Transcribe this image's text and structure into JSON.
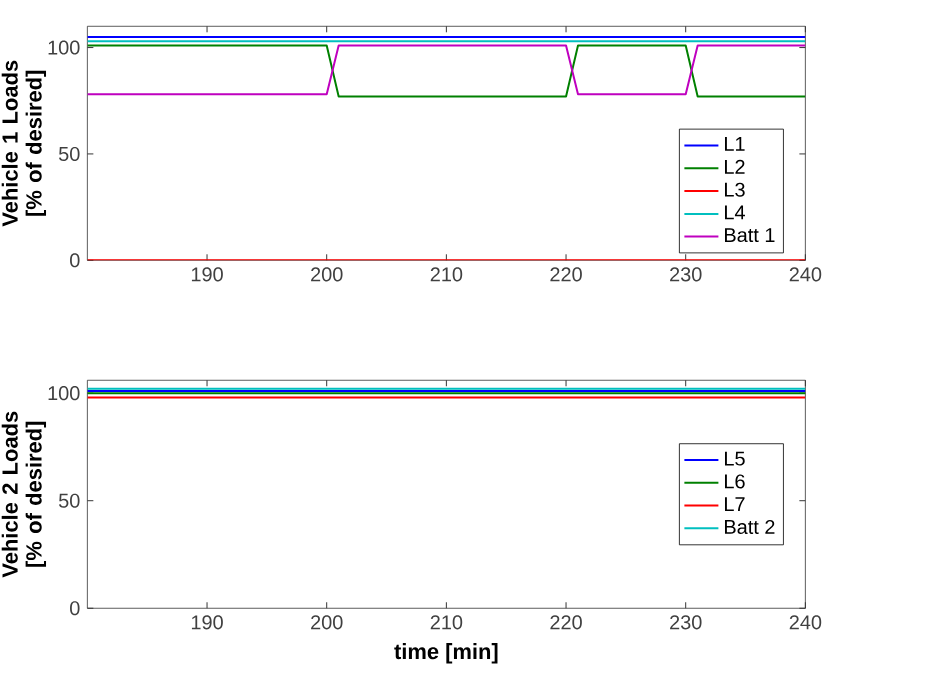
{
  "chart_data": [
    {
      "type": "line",
      "ylabel": "Vehicle 1 Loads [% of desired]",
      "xlim": [
        180,
        240
      ],
      "ylim": [
        0,
        110
      ],
      "xticks": [
        190,
        200,
        210,
        220,
        230,
        240
      ],
      "yticks": [
        0,
        50,
        100
      ],
      "grid": false,
      "legend": "bottom right",
      "series": [
        {
          "name": "L1",
          "color": "#0000ff",
          "x": [
            180,
            240
          ],
          "values": [
            105,
            105
          ]
        },
        {
          "name": "L2",
          "color": "#008000",
          "x": [
            180,
            200,
            201,
            220,
            221,
            230,
            231,
            240
          ],
          "values": [
            101,
            101,
            77,
            77,
            101,
            101,
            77,
            77
          ]
        },
        {
          "name": "L3",
          "color": "#ff0000",
          "x": [
            180,
            240
          ],
          "values": [
            0,
            0
          ]
        },
        {
          "name": "L4",
          "color": "#00bfbf",
          "x": [
            180,
            240
          ],
          "values": [
            103,
            103
          ]
        },
        {
          "name": "Batt 1",
          "color": "#bf00bf",
          "x": [
            180,
            200,
            201,
            220,
            221,
            230,
            231,
            240
          ],
          "values": [
            78,
            78,
            101,
            101,
            78,
            78,
            101,
            101
          ]
        }
      ]
    },
    {
      "type": "line",
      "xlabel": "time [min]",
      "ylabel": "Vehicle 2 Loads [% of desired]",
      "xlim": [
        180,
        240
      ],
      "ylim": [
        0,
        106
      ],
      "xticks": [
        190,
        200,
        210,
        220,
        230,
        240
      ],
      "yticks": [
        0,
        50,
        100
      ],
      "grid": false,
      "legend": "right",
      "series": [
        {
          "name": "L5",
          "color": "#0000ff",
          "x": [
            180,
            240
          ],
          "values": [
            101,
            101
          ]
        },
        {
          "name": "L6",
          "color": "#008000",
          "x": [
            180,
            240
          ],
          "values": [
            100,
            100
          ]
        },
        {
          "name": "L7",
          "color": "#ff0000",
          "x": [
            180,
            240
          ],
          "values": [
            98,
            98
          ]
        },
        {
          "name": "Batt 2",
          "color": "#00bfbf",
          "x": [
            180,
            240
          ],
          "values": [
            102,
            102
          ]
        }
      ]
    }
  ]
}
